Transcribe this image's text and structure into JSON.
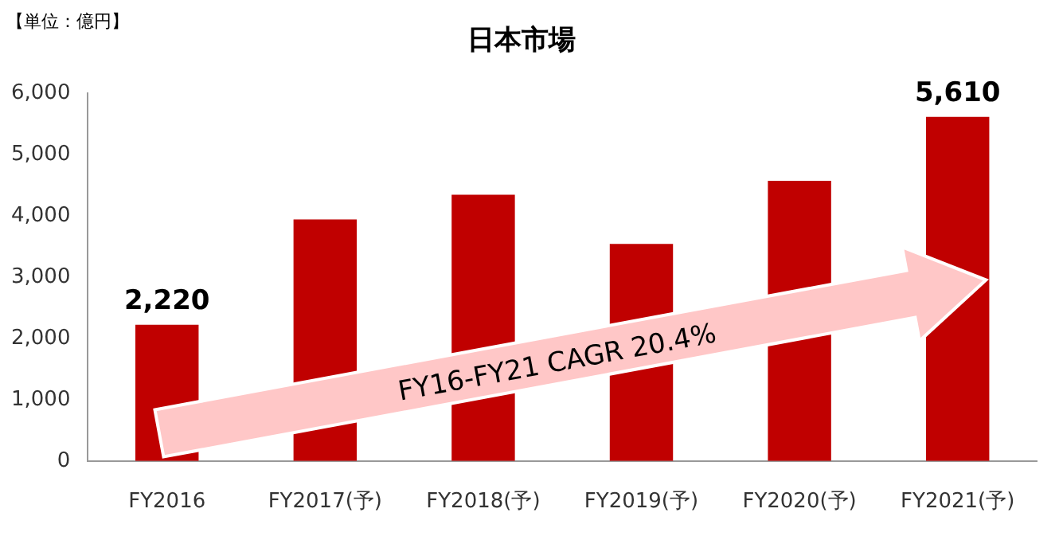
{
  "chart_data": {
    "type": "bar",
    "title": "日本市場",
    "categories": [
      "FY2016",
      "FY2017(予)",
      "FY2018(予)",
      "FY2019(予)",
      "FY2020(予)",
      "FY2021(予)"
    ],
    "values": [
      2220,
      3940,
      4340,
      3540,
      4570,
      5610
    ],
    "color": "#c00000",
    "value_labels": [
      "2,220",
      null,
      null,
      null,
      null,
      "5,610"
    ],
    "ylim": [
      0,
      6000
    ],
    "yticks": [
      0,
      {
        "value": 1000,
        "label": "1,000"
      },
      {
        "value": 2000,
        "label": "2,000"
      },
      {
        "value": 3000,
        "label": "3,000"
      },
      {
        "value": 4000,
        "label": "4,000"
      },
      {
        "value": 5000,
        "label": "5,000"
      },
      {
        "value": 6000,
        "label": "6,000"
      }
    ],
    "grid": false,
    "legend": false,
    "annotations": [
      "【単位：億円】",
      "FY16-FY21 CAGR 20.4%"
    ]
  }
}
